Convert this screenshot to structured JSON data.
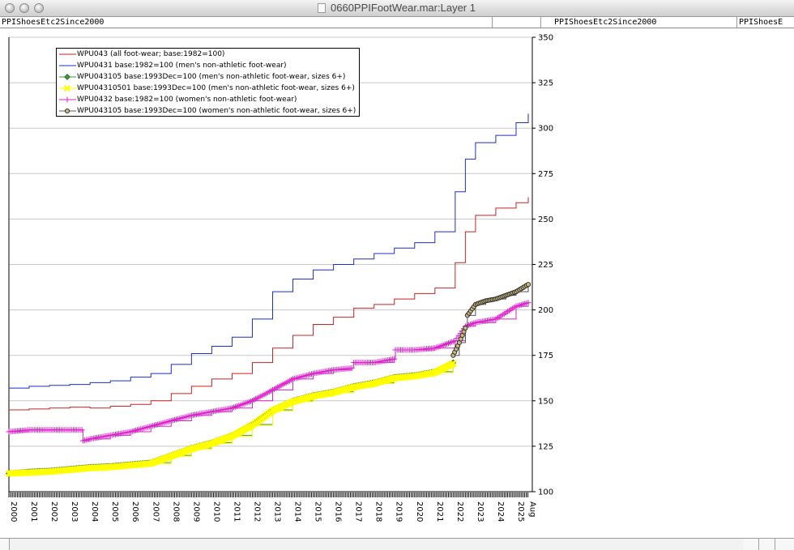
{
  "window": {
    "title": "0660PPIFootWear.mar:Layer 1"
  },
  "tabs": [
    "PPIShoesEtc2Since2000",
    "PPIShoesEtc2Since2000",
    "PPIShoesE"
  ],
  "colors": {
    "WPU043": "#cc2222",
    "WPU0431": "#1c2fcc",
    "WPU043105_mens": "#3c9a3c",
    "WPU04310501": "#ffff00",
    "WPU0432": "#dd22cc",
    "WPU043105_womens": "#555555",
    "grid": "#c8c8c8"
  },
  "chart_data": {
    "type": "line",
    "xlim": [
      2000,
      2025.8
    ],
    "ylim": [
      100,
      350
    ],
    "yticks": [
      100,
      125,
      150,
      175,
      200,
      225,
      250,
      275,
      300,
      325,
      350
    ],
    "xtick_labels": [
      {
        "x": 2000,
        "label": "2000"
      },
      {
        "x": 2001,
        "label": "2001"
      },
      {
        "x": 2002,
        "label": "2002"
      },
      {
        "x": 2003,
        "label": "2003"
      },
      {
        "x": 2004,
        "label": "2004"
      },
      {
        "x": 2005,
        "label": "2005"
      },
      {
        "x": 2006,
        "label": "2006"
      },
      {
        "x": 2007,
        "label": "2007"
      },
      {
        "x": 2008,
        "label": "2008"
      },
      {
        "x": 2009,
        "label": "2009"
      },
      {
        "x": 2010,
        "label": "2010"
      },
      {
        "x": 2011,
        "label": "2011"
      },
      {
        "x": 2012,
        "label": "2012"
      },
      {
        "x": 2013,
        "label": "2013"
      },
      {
        "x": 2014,
        "label": "2014"
      },
      {
        "x": 2015,
        "label": "2015"
      },
      {
        "x": 2016,
        "label": "2016"
      },
      {
        "x": 2017,
        "label": "2017"
      },
      {
        "x": 2018,
        "label": "2018"
      },
      {
        "x": 2019,
        "label": "2019"
      },
      {
        "x": 2020,
        "label": "2020"
      },
      {
        "x": 2021,
        "label": "2021"
      },
      {
        "x": 2022,
        "label": "2022"
      },
      {
        "x": 2023,
        "label": "2023"
      },
      {
        "x": 2024,
        "label": "2024"
      },
      {
        "x": 2025,
        "label": "2025"
      },
      {
        "x": 2025.58,
        "label": "Aug"
      }
    ],
    "grid": true,
    "legend_position": "top-left",
    "series": [
      {
        "name": "WPU043 (all foot-wear; base:1982=100)",
        "key": "WPU043",
        "marker": "none",
        "points": [
          [
            2000,
            145
          ],
          [
            2001,
            145.5
          ],
          [
            2002,
            146
          ],
          [
            2003,
            146.5
          ],
          [
            2004,
            146
          ],
          [
            2005,
            147
          ],
          [
            2006,
            148
          ],
          [
            2007,
            150
          ],
          [
            2008,
            154
          ],
          [
            2009,
            158
          ],
          [
            2010,
            162
          ],
          [
            2011,
            165
          ],
          [
            2012,
            171
          ],
          [
            2013,
            179
          ],
          [
            2014,
            186
          ],
          [
            2015,
            192
          ],
          [
            2016,
            196
          ],
          [
            2017,
            201
          ],
          [
            2018,
            203
          ],
          [
            2019,
            206
          ],
          [
            2020,
            209
          ],
          [
            2021,
            212
          ],
          [
            2022,
            226
          ],
          [
            2022.5,
            243
          ],
          [
            2023,
            252
          ],
          [
            2024,
            256
          ],
          [
            2025,
            259
          ],
          [
            2025.6,
            262
          ]
        ]
      },
      {
        "name": "WPU0431 base:1982=100 (men's non-athletic foot-wear)",
        "key": "WPU0431",
        "marker": "none",
        "points": [
          [
            2000,
            157
          ],
          [
            2001,
            158
          ],
          [
            2002,
            158.5
          ],
          [
            2003,
            159
          ],
          [
            2004,
            160
          ],
          [
            2005,
            161
          ],
          [
            2006,
            163
          ],
          [
            2007,
            165
          ],
          [
            2008,
            170
          ],
          [
            2009,
            176
          ],
          [
            2010,
            180
          ],
          [
            2011,
            185
          ],
          [
            2012,
            195
          ],
          [
            2013,
            210
          ],
          [
            2014,
            217
          ],
          [
            2015,
            222
          ],
          [
            2016,
            225
          ],
          [
            2017,
            228
          ],
          [
            2018,
            231
          ],
          [
            2019,
            234
          ],
          [
            2020,
            237
          ],
          [
            2021,
            243
          ],
          [
            2022,
            265
          ],
          [
            2022.5,
            283
          ],
          [
            2023,
            292
          ],
          [
            2024,
            296
          ],
          [
            2025,
            303
          ],
          [
            2025.6,
            308
          ]
        ]
      },
      {
        "name": "WPU043105 base:1993Dec=100 (men's non-athletic foot-wear, sizes 6+)",
        "key": "WPU043105_mens",
        "marker": "diamond",
        "points": [
          [
            2000,
            110
          ],
          [
            2001,
            111
          ],
          [
            2002,
            111.5
          ],
          [
            2003,
            112.5
          ],
          [
            2004,
            113.5
          ],
          [
            2005,
            114
          ],
          [
            2006,
            115
          ],
          [
            2007,
            116
          ],
          [
            2008,
            120
          ],
          [
            2009,
            124
          ],
          [
            2010,
            127
          ],
          [
            2011,
            131
          ],
          [
            2012,
            137
          ],
          [
            2013,
            145
          ],
          [
            2014,
            150
          ],
          [
            2015,
            153
          ],
          [
            2016,
            155
          ],
          [
            2017,
            158
          ],
          [
            2018,
            160
          ],
          [
            2019,
            163
          ],
          [
            2020,
            164
          ],
          [
            2021,
            166
          ],
          [
            2021.9,
            171
          ]
        ]
      },
      {
        "name": "WPU04310501 base:1993Dec=100 (men's non-athletic foot-wear, sizes 6+)",
        "key": "WPU04310501",
        "marker": "cross",
        "points": [
          [
            2000,
            110
          ],
          [
            2001,
            110.5
          ],
          [
            2002,
            111
          ],
          [
            2003,
            112
          ],
          [
            2004,
            113
          ],
          [
            2005,
            113.5
          ],
          [
            2006,
            114.5
          ],
          [
            2007,
            115.5
          ],
          [
            2008,
            119.5
          ],
          [
            2009,
            123.5
          ],
          [
            2010,
            126.5
          ],
          [
            2011,
            130.5
          ],
          [
            2012,
            136.5
          ],
          [
            2013,
            144.5
          ],
          [
            2014,
            149.5
          ],
          [
            2015,
            152.5
          ],
          [
            2016,
            154.5
          ],
          [
            2017,
            157.5
          ],
          [
            2018,
            159.5
          ],
          [
            2019,
            162.5
          ],
          [
            2020,
            163.5
          ],
          [
            2021,
            165.5
          ],
          [
            2021.9,
            170.5
          ]
        ]
      },
      {
        "name": "WPU0432 base:1982=100 (women's non-athletic foot-wear)",
        "key": "WPU0432",
        "marker": "plus",
        "points": [
          [
            2000,
            133
          ],
          [
            2001,
            134
          ],
          [
            2002,
            134
          ],
          [
            2003,
            134
          ],
          [
            2003.6,
            134
          ],
          [
            2003.65,
            128
          ],
          [
            2004,
            129
          ],
          [
            2005,
            131
          ],
          [
            2006,
            133
          ],
          [
            2007,
            136
          ],
          [
            2008,
            139
          ],
          [
            2009,
            142
          ],
          [
            2010,
            144
          ],
          [
            2011,
            146
          ],
          [
            2012,
            150
          ],
          [
            2013,
            156
          ],
          [
            2014,
            162
          ],
          [
            2015,
            165
          ],
          [
            2016,
            167
          ],
          [
            2016.9,
            168
          ],
          [
            2017,
            171
          ],
          [
            2018,
            171
          ],
          [
            2019,
            173
          ],
          [
            2019.05,
            178
          ],
          [
            2020,
            178
          ],
          [
            2021,
            179
          ],
          [
            2022,
            183
          ],
          [
            2022.5,
            191
          ],
          [
            2023,
            193
          ],
          [
            2024,
            195
          ],
          [
            2025,
            202
          ],
          [
            2025.6,
            204
          ]
        ]
      },
      {
        "name": "WPU043105 base:1993Dec=100 (women's non-athletic foot-wear, sizes 6+)",
        "key": "WPU043105_womens",
        "marker": "circle",
        "points": [
          [
            2021.9,
            175
          ],
          [
            2022.2,
            182
          ],
          [
            2022.5,
            190
          ],
          [
            2022.6,
            197
          ],
          [
            2023,
            203
          ],
          [
            2023.5,
            205
          ],
          [
            2024,
            206
          ],
          [
            2024.5,
            208
          ],
          [
            2025,
            210
          ],
          [
            2025.6,
            214
          ]
        ]
      }
    ]
  }
}
